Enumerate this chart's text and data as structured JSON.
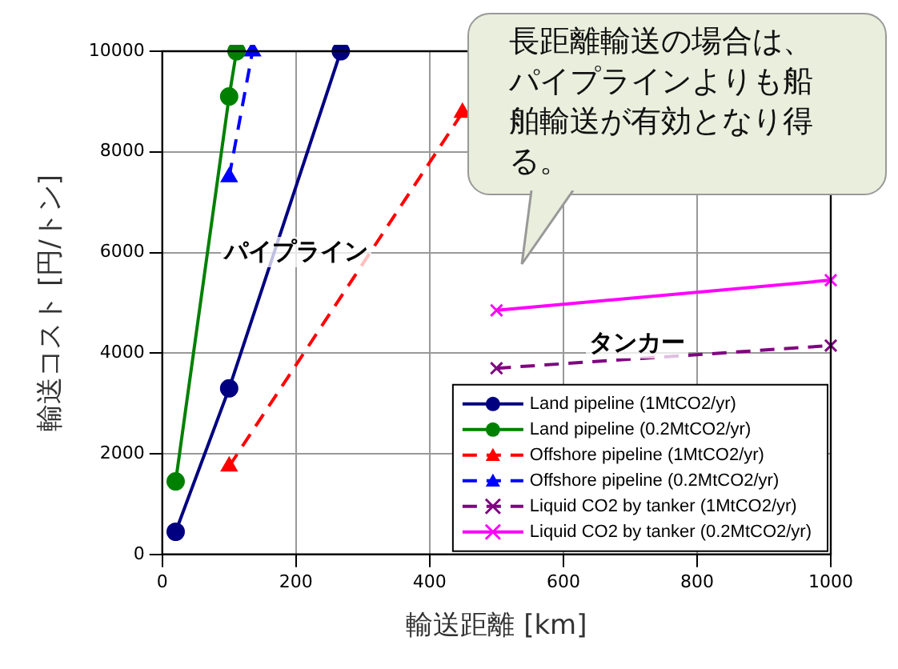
{
  "chart_data": {
    "type": "line",
    "xlabel": "輸送距離 [km]",
    "ylabel": "輸送コスト [円/トン]",
    "xlim": [
      0,
      1000
    ],
    "xticks": [
      0,
      200,
      400,
      600,
      800,
      1000
    ],
    "ylim": [
      0,
      10000
    ],
    "yticks": [
      0,
      2000,
      4000,
      6000,
      8000,
      10000
    ],
    "grid": true,
    "legend": "bottom right",
    "series": [
      {
        "name": "Land pipeline (1MtCO2/yr)",
        "color": "#000080",
        "marker": "circle",
        "line_style": "solid",
        "x": [
          20,
          100,
          267
        ],
        "values": [
          450,
          3300,
          10000
        ]
      },
      {
        "name": "Land pipeline (0.2MtCO2/yr)",
        "color": "#008000",
        "marker": "circle",
        "line_style": "solid",
        "x": [
          20,
          100,
          111
        ],
        "values": [
          1450,
          9100,
          10000
        ]
      },
      {
        "name": "Offshore pipeline (1MtCO2/yr)",
        "color": "#ff0000",
        "marker": "triangle",
        "line_style": "dashed",
        "x": [
          100,
          449
        ],
        "values": [
          1750,
          8780
        ]
      },
      {
        "name": "Offshore pipeline (0.2MtCO2/yr)",
        "color": "#0000ff",
        "marker": "triangle",
        "line_style": "dashed",
        "x": [
          100,
          135
        ],
        "values": [
          7500,
          10000
        ]
      },
      {
        "name": "Liquid CO2 by tanker (1MtCO2/yr)",
        "color": "#800080",
        "marker": "cross",
        "line_style": "dashed",
        "x": [
          500,
          1000
        ],
        "values": [
          3700,
          4150
        ]
      },
      {
        "name": "Liquid CO2 by tanker (0.2MtCO2/yr)",
        "color": "#ff00ff",
        "marker": "cross",
        "line_style": "solid",
        "x": [
          500,
          1000
        ],
        "values": [
          4850,
          5450
        ]
      }
    ],
    "annotations": [
      "パイプライン",
      "タンカー",
      "長距離輸送の場合は、パイプラインよりも船舶輸送が有効となり得る。"
    ]
  }
}
